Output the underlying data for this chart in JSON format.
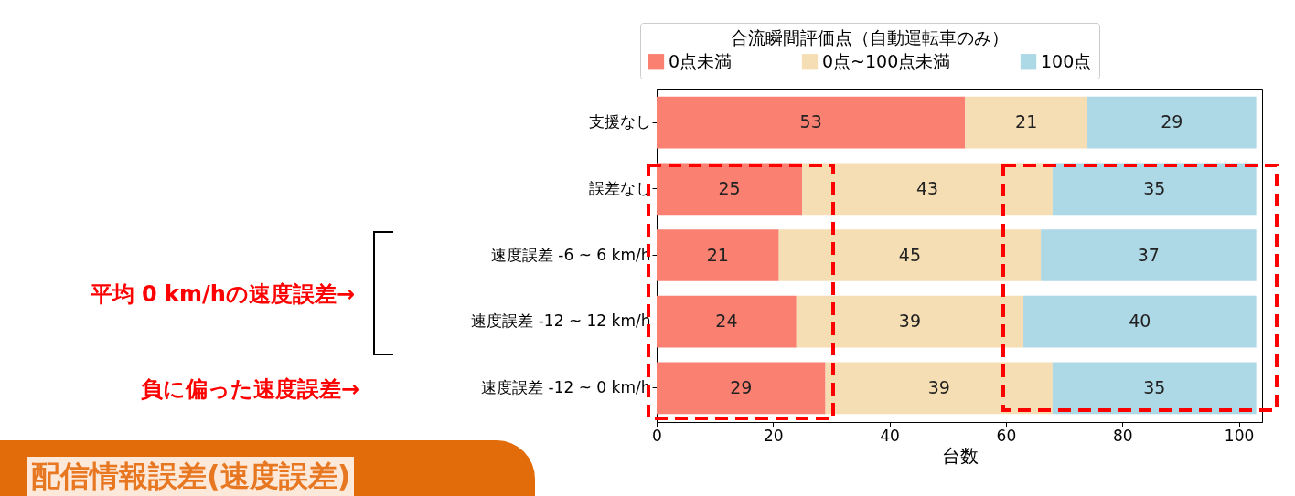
{
  "chart_data": {
    "type": "bar",
    "orientation": "horizontal",
    "stacked": true,
    "data_labels": true,
    "grid": false,
    "legend": "top",
    "legend_title": "合流瞬間評価点（自動運転車のみ）",
    "xlabel": "台数",
    "categories": [
      "支援なし",
      "誤差なし",
      "速度誤差 -6 ~ 6 km/h",
      "速度誤差 -12 ~ 12 km/h",
      "速度誤差 -12 ~ 0 km/h"
    ],
    "series": [
      {
        "name": "0点未満",
        "color": "#fa8072",
        "values": [
          53,
          25,
          21,
          24,
          29
        ]
      },
      {
        "name": "0点~100点未満",
        "color": "#f5deb3",
        "values": [
          21,
          43,
          45,
          39,
          39
        ]
      },
      {
        "name": "100点",
        "color": "#add8e6",
        "values": [
          29,
          35,
          37,
          40,
          35
        ]
      }
    ],
    "xlim": [
      0,
      104
    ],
    "xticks": [
      0,
      20,
      40,
      60,
      80,
      100
    ],
    "annotations": [
      "平均 0 km/hの速度誤差→",
      "負に偏った速度誤差→",
      "配信情報誤差(速度誤差)"
    ]
  }
}
